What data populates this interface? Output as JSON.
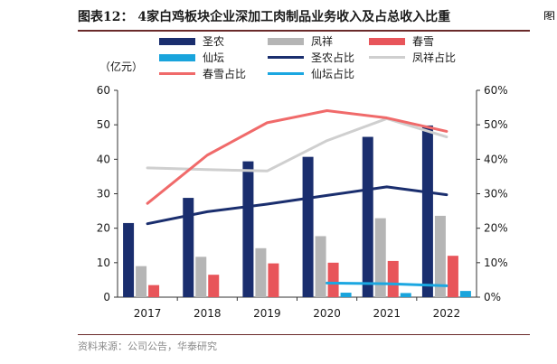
{
  "header": {
    "title": "图表12： 4家白鸡板块企业深加工肉制品业务收入及占总收入比重",
    "edge_glyph": "图"
  },
  "footer": {
    "source": "资料来源：公司公告，华泰研究"
  },
  "colors": {
    "shengnong": "#1a2e6e",
    "fengxiang": "#b5b5b5",
    "chunxue": "#e8555a",
    "xiantan": "#19a4dc",
    "shengnong_line": "#1a2e6e",
    "fengxiang_line": "#cfcfcf",
    "chunxue_line": "#f06a6a",
    "xiantan_line": "#1ba7e1"
  },
  "chart_data": {
    "type": "bar",
    "title": "4家白鸡板块企业深加工肉制品业务收入及占总收入比重",
    "unit_label": "（亿元）",
    "categories": [
      "2017",
      "2018",
      "2019",
      "2020",
      "2021",
      "2022"
    ],
    "left_axis": {
      "min": 0,
      "max": 60,
      "ticks": [
        "0",
        "10",
        "20",
        "30",
        "40",
        "50",
        "60"
      ]
    },
    "right_axis": {
      "min": 0,
      "max": 60,
      "ticks": [
        "0%",
        "10%",
        "20%",
        "30%",
        "40%",
        "50%",
        "60%"
      ]
    },
    "legend": [
      "圣农",
      "凤祥",
      "春雪",
      "仙坛",
      "圣农占比",
      "凤祥占比",
      "春雪占比",
      "仙坛占比"
    ],
    "bar_series": [
      {
        "name": "圣农",
        "color_key": "shengnong",
        "values": [
          21.5,
          28.8,
          39.4,
          40.7,
          46.5,
          49.8
        ]
      },
      {
        "name": "凤祥",
        "color_key": "fengxiang",
        "values": [
          9.0,
          11.7,
          14.2,
          17.7,
          22.9,
          23.6
        ]
      },
      {
        "name": "春雪",
        "color_key": "chunxue",
        "values": [
          3.5,
          6.5,
          9.8,
          10.0,
          10.5,
          12.0
        ]
      },
      {
        "name": "仙坛",
        "color_key": "xiantan",
        "values": [
          null,
          null,
          null,
          1.3,
          1.2,
          1.8
        ]
      }
    ],
    "line_series": [
      {
        "name": "圣农占比",
        "color_key": "shengnong_line",
        "values": [
          21.3,
          24.8,
          27.0,
          29.5,
          32.0,
          29.7
        ]
      },
      {
        "name": "凤祥占比",
        "color_key": "fengxiang_line",
        "values": [
          37.5,
          37.0,
          36.6,
          45.4,
          51.8,
          46.5
        ]
      },
      {
        "name": "春雪占比",
        "color_key": "chunxue_line",
        "values": [
          27.2,
          41.2,
          50.6,
          54.1,
          52.0,
          48.1
        ]
      },
      {
        "name": "仙坛占比",
        "color_key": "xiantan_line",
        "values": [
          null,
          null,
          null,
          4.1,
          3.9,
          3.3
        ]
      }
    ]
  }
}
